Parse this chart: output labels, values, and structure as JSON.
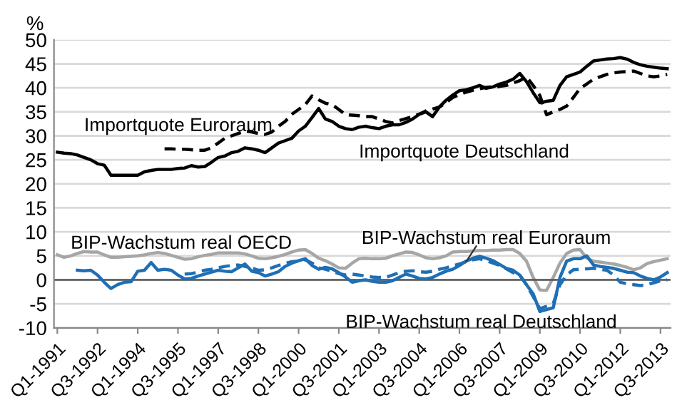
{
  "chart_data": {
    "type": "line",
    "ylabel": "%",
    "categories": [
      "Q1-1991",
      null,
      null,
      null,
      null,
      null,
      "Q3-1992",
      null,
      null,
      null,
      null,
      null,
      "Q1-1994",
      null,
      null,
      null,
      null,
      null,
      "Q3-1995",
      null,
      null,
      null,
      null,
      null,
      "Q1-1997",
      null,
      null,
      null,
      null,
      null,
      "Q3-1998",
      null,
      null,
      null,
      null,
      null,
      "Q1-2000",
      null,
      null,
      null,
      null,
      null,
      "Q3-2001",
      null,
      null,
      null,
      null,
      null,
      "Q1-2003",
      null,
      null,
      null,
      null,
      null,
      "Q3-2004",
      null,
      null,
      null,
      null,
      null,
      "Q1-2006",
      null,
      null,
      null,
      null,
      null,
      "Q3-2007",
      null,
      null,
      null,
      null,
      null,
      "Q1-2009",
      null,
      null,
      null,
      null,
      null,
      "Q3-2010",
      null,
      null,
      null,
      null,
      null,
      "Q1-2012",
      null,
      null,
      null,
      null,
      null,
      "Q3-2013",
      null
    ],
    "series": [
      {
        "name": "Importquote Deutschland",
        "color": "#000000",
        "line_style": "solid",
        "values": [
          26.6,
          26.4,
          26.3,
          26.0,
          25.5,
          25.0,
          24.2,
          23.9,
          21.8,
          21.8,
          21.8,
          21.8,
          21.8,
          22.5,
          22.8,
          23.0,
          23.0,
          23.0,
          23.2,
          23.3,
          23.8,
          23.5,
          23.6,
          24.5,
          25.5,
          25.8,
          26.5,
          26.8,
          27.5,
          27.3,
          27.0,
          26.5,
          27.5,
          28.5,
          29.0,
          29.5,
          31.0,
          32.0,
          33.8,
          35.7,
          33.5,
          33.0,
          32.0,
          31.5,
          31.3,
          31.8,
          32.0,
          31.7,
          31.5,
          32.0,
          32.3,
          32.3,
          32.8,
          33.5,
          34.5,
          35.0,
          34.0,
          36.0,
          37.4,
          38.5,
          39.4,
          39.6,
          40.0,
          40.5,
          39.9,
          40.2,
          40.8,
          41.2,
          41.8,
          43.0,
          41.3,
          39.0,
          36.9,
          37.2,
          37.4,
          40.5,
          42.3,
          42.8,
          43.3,
          44.5,
          45.6,
          45.8,
          46.0,
          46.1,
          46.3,
          46.0,
          45.3,
          44.8,
          44.5,
          44.3,
          44.1,
          44.0
        ]
      },
      {
        "name": "Importquote Euroraum",
        "color": "#000000",
        "line_style": "dashed",
        "values": [
          null,
          null,
          null,
          null,
          null,
          null,
          null,
          null,
          null,
          null,
          null,
          null,
          null,
          null,
          null,
          null,
          27.3,
          27.3,
          27.2,
          27.2,
          27.1,
          27.0,
          27.0,
          27.5,
          28.5,
          29.5,
          30.0,
          30.5,
          31.0,
          30.8,
          30.5,
          30.3,
          30.8,
          32.0,
          33.0,
          34.5,
          35.5,
          36.5,
          38.3,
          37.5,
          36.8,
          36.5,
          35.5,
          34.4,
          34.3,
          34.2,
          34.0,
          34.0,
          33.5,
          33.0,
          32.7,
          33.2,
          33.6,
          34.0,
          34.5,
          35.2,
          35.6,
          36.0,
          36.9,
          38.0,
          38.6,
          39.1,
          39.5,
          39.8,
          40.1,
          40.2,
          40.3,
          40.5,
          41.0,
          41.5,
          42.3,
          40.5,
          38.4,
          34.4,
          35.0,
          35.5,
          36.2,
          38.0,
          39.9,
          40.8,
          41.8,
          42.3,
          42.8,
          43.1,
          43.3,
          43.4,
          43.5,
          43.0,
          42.5,
          42.3,
          42.5,
          42.8
        ]
      },
      {
        "name": "BIP-Wachstum real OECD",
        "color": "#a6a6a6",
        "line_style": "solid",
        "values": [
          5.2,
          4.7,
          5.0,
          5.5,
          5.9,
          5.8,
          5.8,
          5.2,
          4.7,
          4.7,
          4.8,
          4.9,
          5.0,
          5.2,
          5.5,
          5.7,
          5.5,
          5.1,
          4.7,
          4.3,
          4.4,
          4.8,
          5.1,
          5.3,
          5.6,
          5.6,
          5.6,
          5.6,
          5.4,
          5.0,
          4.5,
          4.4,
          4.6,
          4.9,
          5.3,
          5.8,
          6.2,
          6.3,
          5.5,
          4.5,
          4.0,
          3.3,
          2.5,
          2.4,
          3.5,
          4.4,
          4.5,
          4.4,
          4.4,
          4.5,
          5.0,
          5.4,
          5.8,
          5.7,
          5.2,
          4.6,
          4.4,
          4.6,
          5.0,
          5.8,
          5.9,
          5.9,
          6.0,
          6.1,
          6.1,
          6.2,
          6.2,
          6.3,
          6.3,
          5.5,
          3.9,
          0.5,
          -2.1,
          -2.2,
          0.5,
          3.5,
          5.5,
          6.2,
          6.3,
          4.5,
          3.9,
          3.7,
          3.5,
          3.3,
          3.0,
          2.6,
          2.1,
          2.5,
          3.4,
          3.8,
          4.1,
          4.4
        ]
      },
      {
        "name": "BIP-Wachstum real Deutschland",
        "color": "#1f6fb4",
        "line_style": "solid",
        "values": [
          null,
          null,
          null,
          2.0,
          1.9,
          2.0,
          1.0,
          -0.5,
          -1.8,
          -1.0,
          -0.5,
          -0.4,
          1.8,
          2.0,
          3.6,
          2.0,
          2.2,
          2.0,
          1.0,
          0.2,
          0.3,
          0.8,
          1.2,
          1.6,
          2.0,
          1.8,
          1.7,
          2.5,
          3.3,
          1.8,
          1.5,
          0.8,
          1.2,
          1.7,
          2.8,
          3.5,
          4.0,
          4.4,
          3.0,
          2.2,
          2.6,
          2.3,
          1.5,
          0.6,
          -0.5,
          -0.2,
          0.0,
          -0.3,
          -0.5,
          -0.5,
          -0.2,
          0.5,
          1.2,
          0.8,
          0.3,
          0.2,
          0.5,
          1.2,
          1.8,
          2.2,
          3.0,
          3.9,
          4.5,
          4.9,
          4.5,
          4.0,
          3.2,
          2.4,
          2.0,
          1.0,
          -1.0,
          -2.9,
          -6.6,
          -6.2,
          -5.8,
          0.5,
          3.9,
          4.4,
          4.4,
          5.0,
          3.1,
          2.8,
          2.6,
          2.4,
          2.0,
          1.6,
          1.5,
          0.8,
          0.3,
          0.0,
          0.6,
          1.5
        ]
      },
      {
        "name": "BIP-Wachstum real Euroraum",
        "color": "#1f6fb4",
        "line_style": "dashed",
        "values": [
          null,
          null,
          null,
          null,
          null,
          null,
          null,
          null,
          null,
          null,
          null,
          null,
          null,
          null,
          null,
          null,
          null,
          null,
          null,
          1.2,
          1.3,
          1.6,
          2.0,
          2.2,
          2.5,
          2.8,
          3.0,
          3.1,
          2.8,
          2.5,
          2.0,
          2.1,
          2.5,
          3.0,
          3.4,
          3.8,
          3.9,
          4.2,
          3.5,
          2.5,
          2.2,
          1.8,
          1.3,
          1.0,
          1.2,
          1.0,
          0.8,
          0.6,
          0.5,
          0.5,
          1.0,
          1.5,
          1.8,
          1.9,
          1.7,
          1.6,
          1.8,
          2.2,
          2.5,
          2.9,
          3.3,
          3.8,
          4.2,
          4.4,
          4.0,
          3.5,
          3.0,
          2.3,
          1.5,
          1.0,
          -1.0,
          -3.5,
          -6.0,
          -5.5,
          -4.9,
          -1.0,
          1.0,
          2.1,
          2.2,
          2.3,
          2.4,
          2.2,
          2.0,
          1.0,
          -0.5,
          -0.8,
          -1.0,
          -1.2,
          -1.0,
          -0.6,
          -0.2,
          0.0
        ]
      }
    ],
    "ylim": [
      -10,
      50
    ],
    "yticks": [
      -10,
      -5,
      0,
      5,
      10,
      15,
      20,
      25,
      30,
      35,
      40,
      45,
      50
    ],
    "grid": "y",
    "ref_lines": [
      {
        "axis": "y",
        "value": 0,
        "color": "#555555"
      }
    ]
  }
}
